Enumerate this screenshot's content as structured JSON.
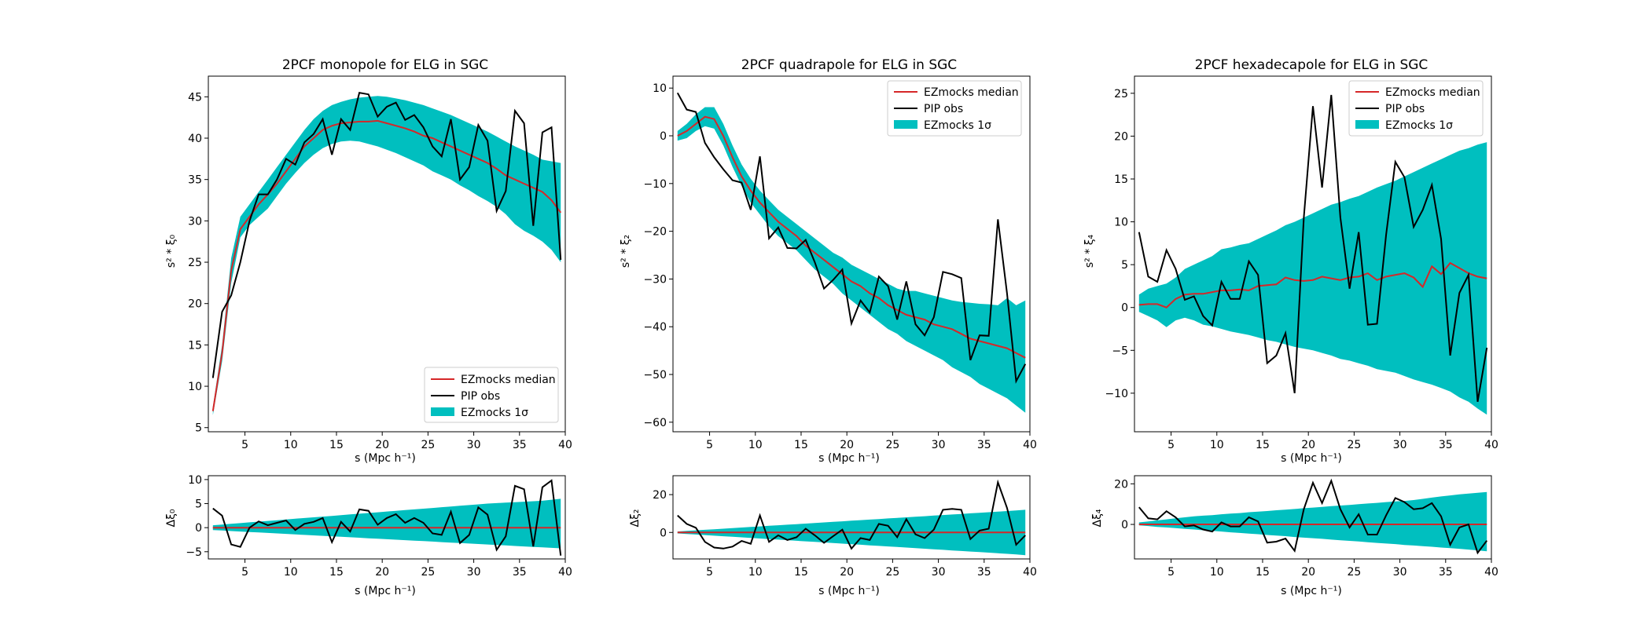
{
  "colors": {
    "median": "#d62728",
    "obs": "#000000",
    "band": "#00bfbf",
    "axes": "#000000"
  },
  "legend_labels": {
    "median": "EZmocks median",
    "obs": "PIP obs",
    "band": "EZmocks 1σ"
  },
  "chart_data": [
    {
      "type": "line",
      "title": "2PCF monopole for ELG in SGC",
      "xlabel": "s (Mpc h⁻¹)",
      "ylabel": "s² * ξ₀",
      "xlim": [
        1,
        40
      ],
      "ylim": [
        4.5,
        47.5
      ],
      "xticks": [
        5,
        10,
        15,
        20,
        25,
        30,
        35,
        40
      ],
      "yticks": [
        5,
        10,
        15,
        20,
        25,
        30,
        35,
        40,
        45
      ],
      "legend": "lower-right",
      "x": [
        1.5,
        2.5,
        3.5,
        4.5,
        5.5,
        6.5,
        7.5,
        8.5,
        9.5,
        10.5,
        11.5,
        12.5,
        13.5,
        14.5,
        15.5,
        16.5,
        17.5,
        18.5,
        19.5,
        20.5,
        21.5,
        22.5,
        23.5,
        24.5,
        25.5,
        26.5,
        27.5,
        28.5,
        29.5,
        30.5,
        31.5,
        32.5,
        33.5,
        34.5,
        35.5,
        36.5,
        37.5,
        38.5,
        39.5
      ],
      "median": [
        7,
        14,
        24,
        29,
        30.5,
        32,
        33.2,
        34.5,
        36,
        37.5,
        39,
        40,
        41,
        41.5,
        41.8,
        41.9,
        42,
        42,
        42.1,
        41.8,
        41.5,
        41.2,
        40.8,
        40.3,
        40,
        39.5,
        39,
        38.5,
        38,
        37.5,
        37,
        36.3,
        35.5,
        35,
        34.5,
        34,
        33.5,
        32.5,
        31
      ],
      "obs": [
        11,
        19,
        21,
        25,
        30,
        33.2,
        33.2,
        35,
        37.5,
        36.8,
        39.5,
        40.5,
        42.3,
        38,
        42.3,
        41,
        45.5,
        45.3,
        42.6,
        43.8,
        44.3,
        42.2,
        42.8,
        41.3,
        39,
        37.8,
        42.3,
        35,
        36.5,
        41.6,
        39.7,
        31.2,
        33.6,
        43.3,
        41.8,
        29.4,
        40.7,
        41.3,
        25.3
      ],
      "band_low": [
        6.5,
        13,
        22.5,
        28,
        29.5,
        30.5,
        31.5,
        33,
        34.5,
        35.8,
        37,
        38,
        38.8,
        39.3,
        39.6,
        39.7,
        39.6,
        39.3,
        39,
        38.6,
        38.2,
        37.7,
        37.2,
        36.7,
        36,
        35.5,
        35,
        34.3,
        33.7,
        33,
        32.4,
        31.7,
        30.8,
        29.6,
        28.8,
        28.2,
        27.5,
        26.5,
        25
      ],
      "band_high": [
        7.5,
        15,
        25.5,
        30.5,
        32,
        33.5,
        35,
        36.5,
        38,
        39.5,
        41,
        42.3,
        43.3,
        44,
        44.4,
        44.7,
        44.9,
        45,
        45.1,
        45,
        44.8,
        44.6,
        44.3,
        44,
        43.6,
        43.2,
        42.8,
        42.3,
        41.8,
        41.3,
        40.8,
        40.2,
        39.6,
        39,
        38.5,
        38,
        37.4,
        37.2,
        37
      ]
    },
    {
      "type": "line",
      "title": "2PCF quadrapole for ELG in SGC",
      "xlabel": "s (Mpc h⁻¹)",
      "ylabel": "s² * ξ₂",
      "xlim": [
        1,
        40
      ],
      "ylim": [
        -62,
        12.5
      ],
      "xticks": [
        5,
        10,
        15,
        20,
        25,
        30,
        35,
        40
      ],
      "yticks": [
        -60,
        -50,
        -40,
        -30,
        -20,
        -10,
        0,
        10
      ],
      "legend": "upper-right",
      "x": [
        1.5,
        2.5,
        3.5,
        4.5,
        5.5,
        6.5,
        7.5,
        8.5,
        9.5,
        10.5,
        11.5,
        12.5,
        13.5,
        14.5,
        15.5,
        16.5,
        17.5,
        18.5,
        19.5,
        20.5,
        21.5,
        22.5,
        23.5,
        24.5,
        25.5,
        26.5,
        27.5,
        28.5,
        29.5,
        30.5,
        31.5,
        32.5,
        33.5,
        34.5,
        35.5,
        36.5,
        37.5,
        38.5,
        39.5
      ],
      "median": [
        0,
        1,
        2.5,
        4,
        3.5,
        0,
        -4.5,
        -8.5,
        -11.5,
        -14,
        -16,
        -18,
        -19.5,
        -21,
        -23,
        -24.5,
        -26,
        -27.5,
        -29,
        -30.5,
        -31.5,
        -33,
        -34,
        -35.5,
        -36.5,
        -37.5,
        -38,
        -38.5,
        -39.5,
        -40,
        -40.5,
        -41.5,
        -42.5,
        -43,
        -43.5,
        -44,
        -44.5,
        -45.5,
        -46.5
      ],
      "obs": [
        9,
        5.5,
        5,
        -1.5,
        -4.5,
        -7,
        -9.3,
        -9.8,
        -15.5,
        -4.3,
        -21.5,
        -19.2,
        -23.5,
        -23.6,
        -21.8,
        -26.5,
        -32,
        -30.2,
        -28,
        -39.3,
        -34.5,
        -37,
        -29.5,
        -31.5,
        -38.5,
        -30.5,
        -39.5,
        -41.8,
        -38,
        -28.5,
        -29,
        -29.8,
        -47,
        -41.8,
        -41.9,
        -17.5,
        -33,
        -51.4,
        -47.8
      ],
      "band_low": [
        -1,
        -0.5,
        1,
        2,
        1.5,
        -2,
        -6.5,
        -10.5,
        -14,
        -16.5,
        -19,
        -21,
        -22.5,
        -24,
        -26,
        -28,
        -29.5,
        -31,
        -33,
        -34.5,
        -36,
        -37.5,
        -39,
        -40.5,
        -41.5,
        -43,
        -44,
        -45,
        -46,
        -47,
        -48.5,
        -49.5,
        -50.5,
        -52,
        -53,
        -54,
        -55,
        -56.5,
        -58
      ],
      "band_high": [
        1,
        2.5,
        4.5,
        6,
        6,
        2.5,
        -2,
        -6,
        -9,
        -11.5,
        -13.5,
        -15.5,
        -17,
        -18.5,
        -20,
        -21.5,
        -23,
        -24.5,
        -25.5,
        -27,
        -28,
        -29,
        -30,
        -31,
        -32,
        -32.5,
        -32.5,
        -33,
        -33.5,
        -34,
        -34.5,
        -34.8,
        -35,
        -35.2,
        -35.3,
        -35.5,
        -34,
        -35.5,
        -34.5
      ]
    },
    {
      "type": "line",
      "title": "2PCF hexadecapole for ELG in SGC",
      "xlabel": "s (Mpc h⁻¹)",
      "ylabel": "s² * ξ₄",
      "xlim": [
        1,
        40
      ],
      "ylim": [
        -14.5,
        27
      ],
      "xticks": [
        5,
        10,
        15,
        20,
        25,
        30,
        35,
        40
      ],
      "yticks": [
        -10,
        -5,
        0,
        5,
        10,
        15,
        20,
        25
      ],
      "legend": "upper-right",
      "x": [
        1.5,
        2.5,
        3.5,
        4.5,
        5.5,
        6.5,
        7.5,
        8.5,
        9.5,
        10.5,
        11.5,
        12.5,
        13.5,
        14.5,
        15.5,
        16.5,
        17.5,
        18.5,
        19.5,
        20.5,
        21.5,
        22.5,
        23.5,
        24.5,
        25.5,
        26.5,
        27.5,
        28.5,
        29.5,
        30.5,
        31.5,
        32.5,
        33.5,
        34.5,
        35.5,
        36.5,
        37.5,
        38.5,
        39.5
      ],
      "median": [
        0.3,
        0.4,
        0.4,
        0,
        1,
        1.5,
        1.6,
        1.6,
        1.8,
        2,
        2,
        2.1,
        2,
        2.5,
        2.6,
        2.7,
        3.5,
        3.2,
        3.1,
        3.2,
        3.6,
        3.4,
        3.2,
        3.5,
        3.6,
        4,
        3.2,
        3.6,
        3.8,
        4,
        3.5,
        2.4,
        4.8,
        3.9,
        5.2,
        4.6,
        4,
        3.6,
        3.4
      ],
      "obs": [
        8.8,
        3.6,
        3,
        6.7,
        4.5,
        0.9,
        1.3,
        -1,
        -2.1,
        3,
        1,
        1,
        5.4,
        3.8,
        -6.5,
        -5.6,
        -3,
        -10,
        10.5,
        23.5,
        14,
        24.8,
        10.5,
        2.2,
        8.8,
        -2,
        -1.9,
        8.5,
        17,
        15.2,
        9.4,
        11.4,
        14.3,
        8,
        -5.6,
        1.7,
        3.8,
        -11,
        -4.7
      ],
      "band_low": [
        -0.5,
        -1,
        -1.5,
        -2.3,
        -1.5,
        -1.2,
        -1.5,
        -2,
        -2.2,
        -2.5,
        -2.8,
        -3,
        -3.2,
        -3.5,
        -3.8,
        -4,
        -4.3,
        -4.6,
        -4.8,
        -5,
        -5.3,
        -5.6,
        -6,
        -6.2,
        -6.5,
        -6.8,
        -7.2,
        -7.4,
        -7.6,
        -8,
        -8.4,
        -8.7,
        -9,
        -9.4,
        -9.8,
        -10.5,
        -11,
        -11.8,
        -12.5
      ],
      "band_high": [
        1.5,
        2.2,
        2.5,
        2.8,
        3.5,
        4.5,
        5,
        5.5,
        6,
        6.8,
        7,
        7.3,
        7.5,
        8,
        8.5,
        9,
        9.6,
        10,
        10.5,
        11,
        11.5,
        12,
        12.3,
        12.7,
        13,
        13.5,
        14,
        14.4,
        14.8,
        15.3,
        15.8,
        16.3,
        16.8,
        17.3,
        17.8,
        18.3,
        18.6,
        19,
        19.3
      ]
    },
    {
      "type": "line",
      "title": "",
      "xlabel": "s (Mpc h⁻¹)",
      "ylabel": "Δξ₀",
      "xlim": [
        1,
        40
      ],
      "ylim": [
        -6.5,
        10.8
      ],
      "xticks": [
        5,
        10,
        15,
        20,
        25,
        30,
        35,
        40
      ],
      "yticks": [
        -5,
        0,
        5,
        10
      ],
      "x": [
        1.5,
        2.5,
        3.5,
        4.5,
        5.5,
        6.5,
        7.5,
        8.5,
        9.5,
        10.5,
        11.5,
        12.5,
        13.5,
        14.5,
        15.5,
        16.5,
        17.5,
        18.5,
        19.5,
        20.5,
        21.5,
        22.5,
        23.5,
        24.5,
        25.5,
        26.5,
        27.5,
        28.5,
        29.5,
        30.5,
        31.5,
        32.5,
        33.5,
        34.5,
        35.5,
        36.5,
        37.5,
        38.5,
        39.5
      ],
      "median": [
        0,
        0,
        0,
        0,
        0,
        0,
        0,
        0,
        0,
        0,
        0,
        0,
        0,
        0,
        0,
        0,
        0,
        0,
        0,
        0,
        0,
        0,
        0,
        0,
        0,
        0,
        0,
        0,
        0,
        0,
        0,
        0,
        0,
        0,
        0,
        0,
        0,
        0,
        0
      ],
      "obs": [
        4,
        2.5,
        -3.5,
        -4,
        0,
        1.3,
        0.5,
        1,
        1.5,
        -0.5,
        0.8,
        1.2,
        2,
        -3,
        1.2,
        -0.8,
        3.8,
        3.5,
        0.6,
        2,
        2.8,
        1,
        2,
        1,
        -1.2,
        -1.5,
        3.3,
        -3.2,
        -1.5,
        4.2,
        2.7,
        -4.6,
        -1.8,
        8.7,
        8,
        -3.9,
        8.4,
        9.8,
        -5.8
      ],
      "band_low": [
        -0.5,
        -0.6,
        -0.7,
        -0.8,
        -0.9,
        -1,
        -1.1,
        -1.2,
        -1.3,
        -1.4,
        -1.5,
        -1.6,
        -1.7,
        -1.8,
        -1.9,
        -2,
        -2.1,
        -2.2,
        -2.3,
        -2.4,
        -2.5,
        -2.6,
        -2.7,
        -2.8,
        -2.9,
        -3,
        -3.1,
        -3.2,
        -3.3,
        -3.4,
        -3.5,
        -3.6,
        -3.7,
        -3.8,
        -3.9,
        -4,
        -4.1,
        -4.2,
        -4.3
      ],
      "band_high": [
        0.5,
        0.65,
        0.8,
        0.95,
        1.1,
        1.25,
        1.4,
        1.55,
        1.7,
        1.85,
        2,
        2.15,
        2.3,
        2.45,
        2.6,
        2.75,
        2.9,
        3.05,
        3.2,
        3.35,
        3.5,
        3.65,
        3.8,
        3.95,
        4.1,
        4.25,
        4.4,
        4.55,
        4.7,
        4.85,
        5,
        5.1,
        5.2,
        5.3,
        5.4,
        5.5,
        5.6,
        5.8,
        6
      ]
    },
    {
      "type": "line",
      "title": "",
      "xlabel": "s (Mpc h⁻¹)",
      "ylabel": "Δξ₂",
      "xlim": [
        1,
        40
      ],
      "ylim": [
        -14,
        30
      ],
      "xticks": [
        5,
        10,
        15,
        20,
        25,
        30,
        35,
        40
      ],
      "yticks": [
        0,
        20
      ],
      "x": [
        1.5,
        2.5,
        3.5,
        4.5,
        5.5,
        6.5,
        7.5,
        8.5,
        9.5,
        10.5,
        11.5,
        12.5,
        13.5,
        14.5,
        15.5,
        16.5,
        17.5,
        18.5,
        19.5,
        20.5,
        21.5,
        22.5,
        23.5,
        24.5,
        25.5,
        26.5,
        27.5,
        28.5,
        29.5,
        30.5,
        31.5,
        32.5,
        33.5,
        34.5,
        35.5,
        36.5,
        37.5,
        38.5,
        39.5
      ],
      "median": [
        0,
        0,
        0,
        0,
        0,
        0,
        0,
        0,
        0,
        0,
        0,
        0,
        0,
        0,
        0,
        0,
        0,
        0,
        0,
        0,
        0,
        0,
        0,
        0,
        0,
        0,
        0,
        0,
        0,
        0,
        0,
        0,
        0,
        0,
        0,
        0,
        0,
        0,
        0
      ],
      "obs": [
        9,
        4.5,
        2.5,
        -5,
        -8,
        -8.5,
        -7.5,
        -4.5,
        -6,
        9,
        -5,
        -1.5,
        -4,
        -2.5,
        2,
        -1.5,
        -5.5,
        -2,
        1.5,
        -8.5,
        -3,
        -4,
        4.5,
        3.5,
        -2.5,
        7,
        -1,
        -3,
        1.5,
        12,
        12.5,
        12,
        -3.5,
        1,
        2,
        26.5,
        13,
        -6.5,
        -1.5
      ],
      "band_low": [
        -0.5,
        -0.8,
        -1.1,
        -1.4,
        -1.7,
        -2,
        -2.3,
        -2.6,
        -2.9,
        -3.2,
        -3.5,
        -3.8,
        -4.1,
        -4.4,
        -4.7,
        -5,
        -5.3,
        -5.6,
        -5.9,
        -6.2,
        -6.5,
        -6.8,
        -7.1,
        -7.4,
        -7.7,
        -8,
        -8.3,
        -8.6,
        -8.9,
        -9.2,
        -9.5,
        -9.8,
        -10.1,
        -10.4,
        -10.7,
        -11,
        -11.3,
        -11.6,
        -12
      ],
      "band_high": [
        0.5,
        0.8,
        1.1,
        1.4,
        1.7,
        2,
        2.3,
        2.6,
        2.9,
        3.2,
        3.5,
        3.8,
        4.1,
        4.4,
        4.7,
        5,
        5.3,
        5.6,
        5.9,
        6.2,
        6.5,
        6.8,
        7.1,
        7.4,
        7.7,
        8,
        8.3,
        8.6,
        8.9,
        9.2,
        9.5,
        9.8,
        10.1,
        10.4,
        10.7,
        11,
        11.3,
        11.6,
        12
      ]
    },
    {
      "type": "line",
      "title": "",
      "xlabel": "s (Mpc h⁻¹)",
      "ylabel": "Δξ₄",
      "xlim": [
        1,
        40
      ],
      "ylim": [
        -17,
        24
      ],
      "xticks": [
        5,
        10,
        15,
        20,
        25,
        30,
        35,
        40
      ],
      "yticks": [
        0,
        20
      ],
      "x": [
        1.5,
        2.5,
        3.5,
        4.5,
        5.5,
        6.5,
        7.5,
        8.5,
        9.5,
        10.5,
        11.5,
        12.5,
        13.5,
        14.5,
        15.5,
        16.5,
        17.5,
        18.5,
        19.5,
        20.5,
        21.5,
        22.5,
        23.5,
        24.5,
        25.5,
        26.5,
        27.5,
        28.5,
        29.5,
        30.5,
        31.5,
        32.5,
        33.5,
        34.5,
        35.5,
        36.5,
        37.5,
        38.5,
        39.5
      ],
      "median": [
        0,
        0,
        0,
        0,
        0,
        0,
        0,
        0,
        0,
        0,
        0,
        0,
        0,
        0,
        0,
        0,
        0,
        0,
        0,
        0,
        0,
        0,
        0,
        0,
        0,
        0,
        0,
        0,
        0,
        0,
        0,
        0,
        0,
        0,
        0,
        0,
        0,
        0,
        0
      ],
      "obs": [
        8.5,
        3,
        2.5,
        6.5,
        3.5,
        -1,
        -0.5,
        -2.5,
        -3.5,
        1,
        -1,
        -1,
        3.5,
        1.5,
        -9,
        -8.5,
        -7,
        -13,
        7.5,
        20.5,
        10.5,
        21.5,
        7.5,
        -1.5,
        5,
        -5,
        -5,
        4.5,
        13,
        11,
        7.5,
        8,
        10.5,
        4,
        -10,
        -1.5,
        0,
        -14,
        -8
      ],
      "band_low": [
        -0.5,
        -0.8,
        -1.2,
        -1.5,
        -1.8,
        -2.2,
        -2.5,
        -2.9,
        -3.2,
        -3.5,
        -3.9,
        -4.2,
        -4.5,
        -4.8,
        -5.2,
        -5.5,
        -5.8,
        -6.2,
        -6.5,
        -6.8,
        -7.1,
        -7.5,
        -7.8,
        -8.1,
        -8.4,
        -8.8,
        -9.1,
        -9.4,
        -9.7,
        -10.1,
        -10.4,
        -10.7,
        -11,
        -11.4,
        -11.7,
        -12,
        -12.4,
        -12.8,
        -13.2
      ],
      "band_high": [
        1,
        1.5,
        2,
        2.5,
        3,
        3.5,
        4,
        4.3,
        4.6,
        5,
        5.3,
        5.6,
        6,
        6.3,
        6.6,
        7,
        7.3,
        7.6,
        8,
        8.3,
        8.6,
        9,
        9.3,
        9.6,
        10,
        10.3,
        10.6,
        11,
        11.3,
        11.6,
        12,
        12.6,
        13.2,
        13.8,
        14.3,
        14.8,
        15.2,
        15.6,
        16
      ]
    }
  ]
}
